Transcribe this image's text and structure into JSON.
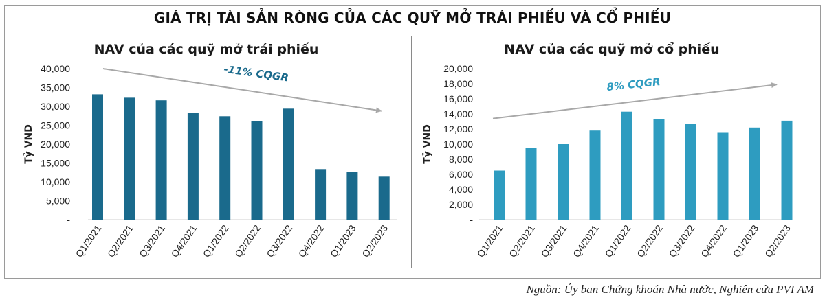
{
  "main_title": "GIÁ TRỊ TÀI SẢN RÒNG CỦA CÁC QUỸ MỞ TRÁI PHIẾU VÀ CỔ PHIẾU",
  "source": "Nguồn: Ủy ban Chứng khoán Nhà nước, Nghiên cứu PVI AM",
  "chart_data": [
    {
      "type": "bar",
      "title": "NAV của các quỹ mở trái phiếu",
      "ylabel": "Tỷ VND",
      "xlabel": "",
      "categories": [
        "Q1/2021",
        "Q2/2021",
        "Q3/2021",
        "Q4/2021",
        "Q1/2022",
        "Q2/2022",
        "Q3/2022",
        "Q4/2022",
        "Q1/2023",
        "Q2/2023"
      ],
      "values": [
        33200,
        32300,
        31600,
        28200,
        27400,
        26000,
        29400,
        13400,
        12700,
        11400
      ],
      "ylim": [
        0,
        40000
      ],
      "yticks": [
        "-",
        "5,000",
        "10,000",
        "15,000",
        "20,000",
        "25,000",
        "30,000",
        "35,000",
        "40,000"
      ],
      "color": "#1a6a8c",
      "trend": {
        "label": "-11% CQGR",
        "color": "#1a6a8c",
        "start_value": 40000,
        "end_value": 28800
      },
      "grid": false
    },
    {
      "type": "bar",
      "title": "NAV của các quỹ mở cổ phiếu",
      "ylabel": "Tỷ VND",
      "xlabel": "",
      "categories": [
        "Q1/2021",
        "Q2/2021",
        "Q3/2021",
        "Q4/2021",
        "Q1/2022",
        "Q2/2022",
        "Q3/2022",
        "Q4/2022",
        "Q1/2023",
        "Q2/2023"
      ],
      "values": [
        6500,
        9500,
        10000,
        11800,
        14300,
        13300,
        12700,
        11500,
        12200,
        13100
      ],
      "ylim": [
        0,
        20000
      ],
      "yticks": [
        "-",
        "2,000",
        "4,000",
        "6,000",
        "8,000",
        "10,000",
        "12,000",
        "14,000",
        "16,000",
        "18,000",
        "20,000"
      ],
      "color": "#2e9cc0",
      "trend": {
        "label": "8% CQGR",
        "color": "#2e9cc0",
        "start_value": 13400,
        "end_value": 17900
      },
      "grid": false
    }
  ]
}
